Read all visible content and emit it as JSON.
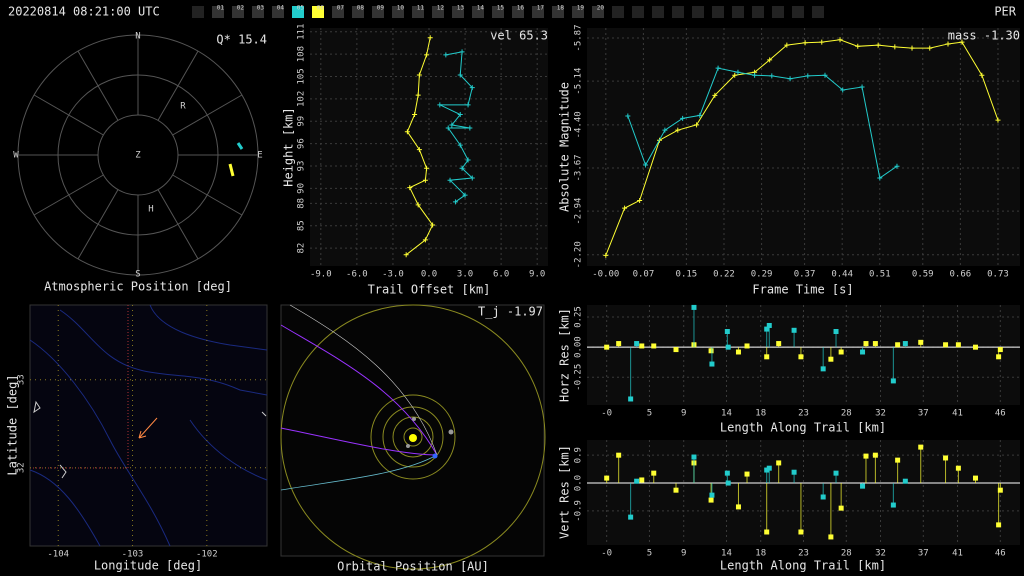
{
  "header": {
    "timestamp": "20220814 08:21:00 UTC",
    "station": "PER",
    "frames": [
      "01",
      "02",
      "03",
      "04",
      "05",
      "06",
      "07",
      "08",
      "09",
      "10",
      "11",
      "12",
      "13",
      "14",
      "15",
      "16",
      "17",
      "18",
      "19",
      "20"
    ],
    "frame_colors": [
      "#333333",
      "#333333",
      "#333333",
      "#333333",
      "#22cccc",
      "#ffff33",
      "#333333",
      "#333333",
      "#333333",
      "#333333",
      "#333333",
      "#333333",
      "#333333",
      "#333333",
      "#333333",
      "#333333",
      "#333333",
      "#333333",
      "#333333",
      "#333333"
    ]
  },
  "chart_data": [
    {
      "type": "polar",
      "title": "Atmospheric Position [deg]",
      "annotation": "Q* 15.4",
      "directions": [
        "N",
        "E",
        "S",
        "W"
      ],
      "markers": [
        "Z",
        "R",
        "H"
      ]
    },
    {
      "type": "line",
      "annotation": "vel 65.3",
      "xlabel": "Trail Offset [km]",
      "ylabel": "Height [km]",
      "xlim": [
        -9.9,
        9.9
      ],
      "ylim": [
        79.6,
        111.5
      ],
      "grid": true,
      "xticks": [
        {
          "value": -9,
          "label": "-9.0"
        },
        {
          "value": -6,
          "label": "-6.0"
        },
        {
          "value": -3,
          "label": "-3.0"
        },
        {
          "value": 0,
          "label": "0.0"
        },
        {
          "value": 3,
          "label": "3.0"
        },
        {
          "value": 6,
          "label": "6.0"
        },
        {
          "value": 9,
          "label": "9.0"
        }
      ],
      "yticks": [
        82,
        85,
        88,
        90,
        93,
        96,
        99,
        102,
        105,
        108,
        111
      ],
      "series": [
        {
          "color": "#ffff33",
          "x": [
            0.1,
            -0.2,
            -0.8,
            -0.9,
            -1.2,
            -1.8,
            -0.8,
            -0.2,
            -0.3,
            -1.6,
            -0.9,
            0.3,
            -0.3,
            -1.9
          ],
          "values": [
            110.2,
            107.9,
            105.2,
            102.5,
            99.9,
            97.6,
            95.2,
            92.7,
            91.1,
            90.1,
            87.8,
            85.1,
            83.1,
            81.1
          ]
        },
        {
          "color": "#22cccc",
          "x": [
            1.4,
            2.75,
            2.6,
            3.6,
            3.25,
            0.9,
            2.6,
            1.9,
            3.4,
            1.6,
            2.6,
            3.25,
            2.75,
            3.6,
            1.75,
            3.0,
            2.2
          ],
          "values": [
            107.9,
            108.3,
            105.2,
            103.5,
            101.2,
            101.2,
            99.9,
            98.5,
            98.1,
            98.1,
            95.8,
            93.8,
            92.7,
            91.4,
            91.1,
            89.1,
            88.2
          ]
        }
      ]
    },
    {
      "type": "line",
      "annotation": "mass -1.30",
      "xlabel": "Frame Time [s]",
      "ylabel": "Absolute Magnitude",
      "xlim": [
        -0.035,
        0.771
      ],
      "ylim": [
        -2.01,
        -6.04
      ],
      "grid": true,
      "xticks": [
        {
          "value": 0,
          "label": "-0.00"
        },
        0.07,
        0.15,
        0.22,
        0.29,
        0.37,
        0.44,
        0.51,
        0.59,
        0.66,
        0.73
      ],
      "yticks": [
        {
          "value": -2.2,
          "label": "-2.20"
        },
        -2.94,
        -3.67,
        {
          "value": -4.4,
          "label": "-4.40"
        },
        -5.14,
        -5.87
      ],
      "series": [
        {
          "color": "#ffff33",
          "x": [
            0,
            0.035,
            0.063,
            0.1,
            0.134,
            0.169,
            0.203,
            0.24,
            0.277,
            0.305,
            0.337,
            0.371,
            0.402,
            0.436,
            0.469,
            0.507,
            0.538,
            0.57,
            0.603,
            0.637,
            0.663,
            0.7,
            0.73
          ],
          "values": [
            -2.19,
            -2.99,
            -3.12,
            -4.14,
            -4.31,
            -4.4,
            -4.9,
            -5.24,
            -5.29,
            -5.5,
            -5.75,
            -5.79,
            -5.8,
            -5.84,
            -5.73,
            -5.75,
            -5.72,
            -5.7,
            -5.7,
            -5.77,
            -5.8,
            -5.24,
            -4.48
          ]
        },
        {
          "color": "#22cccc",
          "x": [
            0.041,
            0.074,
            0.11,
            0.143,
            0.175,
            0.209,
            0.246,
            0.277,
            0.309,
            0.343,
            0.376,
            0.408,
            0.441,
            0.477,
            0.51,
            0.542
          ],
          "values": [
            -4.55,
            -3.72,
            -4.31,
            -4.51,
            -4.56,
            -5.36,
            -5.29,
            -5.24,
            -5.23,
            -5.18,
            -5.23,
            -5.24,
            -4.99,
            -5.04,
            -3.5,
            -3.7
          ]
        }
      ]
    },
    {
      "type": "map",
      "xlabel": "Longitude [deg]",
      "ylabel": "Latitude [deg]",
      "xlim": [
        -104.38,
        -101.19
      ],
      "ylim": [
        31.11,
        33.85
      ],
      "grid": true,
      "xticks": [
        -104,
        -103,
        -102
      ],
      "yticks": [
        32,
        33
      ]
    },
    {
      "type": "orbit",
      "title": "Orbital Position [AU]",
      "annotation": "T_j -1.97"
    },
    {
      "type": "stem",
      "xlabel": "Length Along Trail [km]",
      "ylabel": "Horz Res [km]",
      "xlim": [
        -2.3,
        48.3
      ],
      "ylim": [
        -0.48,
        0.35
      ],
      "grid": true,
      "xticks": [
        {
          "value": 0,
          "label": "-0"
        },
        5,
        9,
        14,
        18,
        23,
        28,
        32,
        37,
        41,
        46
      ],
      "yticks": [
        -0.25,
        {
          "value": 0,
          "label": "0.00"
        },
        0.25
      ],
      "series": [
        {
          "color": "#ffff33",
          "x": [
            0,
            1.4,
            4.1,
            5.5,
            8.1,
            10.2,
            12.2,
            15.4,
            16.4,
            18.7,
            20.1,
            22.7,
            26.2,
            27.4,
            30.3,
            31.4,
            34.0,
            36.7,
            39.6,
            41.1,
            43.1,
            45.8,
            46.0
          ],
          "values": [
            0,
            0.03,
            0.01,
            0.01,
            -0.02,
            0.02,
            -0.03,
            -0.04,
            0.01,
            -0.08,
            0.03,
            -0.08,
            -0.1,
            -0.04,
            0.03,
            0.03,
            0.02,
            0.04,
            0.02,
            0.02,
            0,
            -0.08,
            -0.02
          ]
        },
        {
          "color": "#22cccc",
          "x": [
            2.8,
            3.5,
            10.2,
            12.3,
            14.1,
            14.2,
            18.7,
            19.0,
            21.9,
            25.3,
            26.8,
            29.9,
            33.5,
            34.9
          ],
          "values": [
            -0.43,
            0.03,
            0.33,
            -0.14,
            0.13,
            0,
            0.15,
            0.18,
            0.14,
            -0.18,
            0.13,
            -0.04,
            -0.28,
            0.03
          ]
        }
      ]
    },
    {
      "type": "stem",
      "xlabel": "Length Along Trail [km]",
      "ylabel": "Vert Res [km]",
      "xlim": [
        -2.3,
        48.3
      ],
      "ylim": [
        -2.0,
        1.39
      ],
      "grid": true,
      "xticks": [
        {
          "value": 0,
          "label": "-0"
        },
        5,
        9,
        14,
        18,
        23,
        28,
        32,
        37,
        41,
        46
      ],
      "yticks": [
        -0.9,
        {
          "value": 0,
          "label": "0.0"
        },
        0.9
      ],
      "series": [
        {
          "color": "#ffff33",
          "x": [
            0,
            1.4,
            4.1,
            5.5,
            8.1,
            10.2,
            12.2,
            15.4,
            16.4,
            18.7,
            20.1,
            22.7,
            26.2,
            27.4,
            30.3,
            31.4,
            34.0,
            36.7,
            39.6,
            41.1,
            43.1,
            45.8,
            46.0
          ],
          "values": [
            0.16,
            0.9,
            0.1,
            0.32,
            -0.23,
            0.65,
            -0.55,
            -0.77,
            0.29,
            -1.58,
            0.65,
            -1.58,
            -1.74,
            -0.81,
            0.87,
            0.9,
            0.74,
            1.16,
            0.81,
            0.48,
            0.16,
            -1.35,
            -0.23
          ]
        },
        {
          "color": "#22cccc",
          "x": [
            2.8,
            3.5,
            10.2,
            12.3,
            14.1,
            14.2,
            18.7,
            19.0,
            21.9,
            25.3,
            26.8,
            29.9,
            33.5,
            34.9
          ],
          "values": [
            -1.1,
            0.06,
            0.84,
            -0.39,
            0.32,
            0,
            0.42,
            0.48,
            0.35,
            -0.45,
            0.32,
            -0.1,
            -0.71,
            0.06
          ]
        }
      ]
    }
  ]
}
